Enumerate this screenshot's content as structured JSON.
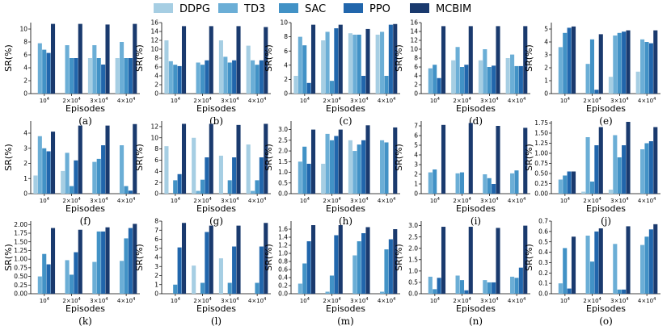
{
  "legend": [
    {
      "name": "DDPG",
      "color": "#a6cee3"
    },
    {
      "name": "TD3",
      "color": "#6baed6"
    },
    {
      "name": "SAC",
      "color": "#4292c6"
    },
    {
      "name": "PPO",
      "color": "#2166ac"
    },
    {
      "name": "MCBIM",
      "color": "#1a3a6e"
    }
  ],
  "chart_data": [
    {
      "label": "(a)",
      "type": "bar",
      "xlabel": "Episodes",
      "ylabel": "SR(%)",
      "ylim": [
        0,
        11
      ],
      "yticks": [
        0,
        2,
        4,
        6,
        8,
        10
      ],
      "categories": [
        "10^4",
        "2×10^4",
        "3×10^4",
        "4×10^4"
      ],
      "series": [
        {
          "name": "DDPG",
          "values": [
            0,
            0,
            5.5,
            5.5
          ]
        },
        {
          "name": "TD3",
          "values": [
            7.8,
            7.5,
            7.5,
            8
          ]
        },
        {
          "name": "SAC",
          "values": [
            6.8,
            5.5,
            5.5,
            5.5
          ]
        },
        {
          "name": "PPO",
          "values": [
            6.3,
            5.5,
            4.5,
            5.5
          ]
        },
        {
          "name": "MCBIM",
          "values": [
            10.8,
            10.8,
            10.7,
            10.8
          ]
        }
      ]
    },
    {
      "label": "(b)",
      "type": "bar",
      "xlabel": "Episodes",
      "ylabel": "SR(%)",
      "ylim": [
        0,
        16
      ],
      "yticks": [
        0,
        2,
        4,
        6,
        8,
        10,
        12,
        14,
        16
      ],
      "categories": [
        "10^4",
        "2×10^4",
        "3×10^4",
        "4×10^4"
      ],
      "series": [
        {
          "name": "DDPG",
          "values": [
            12,
            0,
            12,
            10.8
          ]
        },
        {
          "name": "TD3",
          "values": [
            7.3,
            7,
            8.3,
            7.5
          ]
        },
        {
          "name": "SAC",
          "values": [
            6.5,
            6.5,
            7,
            6.5
          ]
        },
        {
          "name": "PPO",
          "values": [
            6.2,
            7.5,
            7.5,
            7.5
          ]
        },
        {
          "name": "MCBIM",
          "values": [
            15.2,
            15.2,
            15.2,
            15
          ]
        }
      ]
    },
    {
      "label": "(c)",
      "type": "bar",
      "xlabel": "Episodes",
      "ylabel": "SR(%)",
      "ylim": [
        0,
        10
      ],
      "yticks": [
        0,
        2,
        4,
        6,
        8,
        10
      ],
      "categories": [
        "10^4",
        "2×10^4",
        "3×10^4",
        "4×10^4"
      ],
      "series": [
        {
          "name": "DDPG",
          "values": [
            2.5,
            7.5,
            8.5,
            8.3
          ]
        },
        {
          "name": "TD3",
          "values": [
            8,
            8.7,
            8.3,
            8.7
          ]
        },
        {
          "name": "SAC",
          "values": [
            6.8,
            1.8,
            8.3,
            2.5
          ]
        },
        {
          "name": "PPO",
          "values": [
            1.5,
            9.2,
            2.5,
            9.7
          ]
        },
        {
          "name": "MCBIM",
          "values": [
            9.7,
            9.7,
            9.1,
            9.8
          ]
        }
      ]
    },
    {
      "label": "(d)",
      "type": "bar",
      "xlabel": "Episodes",
      "ylabel": "SR(%)",
      "ylim": [
        0,
        16
      ],
      "yticks": [
        0,
        2,
        4,
        6,
        8,
        10,
        12,
        14,
        16
      ],
      "categories": [
        "10^4",
        "2×10^4",
        "3×10^4",
        "4×10^4"
      ],
      "series": [
        {
          "name": "DDPG",
          "values": [
            0,
            7.5,
            7.5,
            8
          ]
        },
        {
          "name": "TD3",
          "values": [
            5.7,
            10.5,
            10,
            8.8
          ]
        },
        {
          "name": "SAC",
          "values": [
            6.5,
            6,
            6,
            6.2
          ]
        },
        {
          "name": "PPO",
          "values": [
            3.5,
            6.5,
            6.3,
            6.2
          ]
        },
        {
          "name": "MCBIM",
          "values": [
            15.2,
            15.2,
            15.2,
            15.2
          ]
        }
      ]
    },
    {
      "label": "(e)",
      "type": "bar",
      "xlabel": "Episodes",
      "ylabel": "SR(%)",
      "ylim": [
        0,
        5.5
      ],
      "yticks": [
        0,
        1,
        2,
        3,
        4,
        5
      ],
      "categories": [
        "10^4",
        "2×10^4",
        "3×10^4",
        "4×10^4"
      ],
      "series": [
        {
          "name": "DDPG",
          "values": [
            0,
            0,
            1.3,
            1.7
          ]
        },
        {
          "name": "TD3",
          "values": [
            3.6,
            2.3,
            4.5,
            4.2
          ]
        },
        {
          "name": "SAC",
          "values": [
            4.7,
            4.2,
            4.7,
            4
          ]
        },
        {
          "name": "PPO",
          "values": [
            5.1,
            0.3,
            4.8,
            3.9
          ]
        },
        {
          "name": "MCBIM",
          "values": [
            5.2,
            4.6,
            4.9,
            4.9
          ]
        }
      ]
    },
    {
      "label": "(f)",
      "type": "bar",
      "xlabel": "Episodes",
      "ylabel": "SR(%)",
      "ylim": [
        0,
        4.8
      ],
      "yticks": [
        0,
        1,
        2,
        3,
        4
      ],
      "categories": [
        "10^4",
        "2×10^4",
        "3×10^4",
        "4×10^4"
      ],
      "series": [
        {
          "name": "DDPG",
          "values": [
            1.2,
            1.5,
            0,
            0
          ]
        },
        {
          "name": "TD3",
          "values": [
            3.8,
            2.7,
            2.1,
            3.2
          ]
        },
        {
          "name": "SAC",
          "values": [
            3,
            0.5,
            2.3,
            0.5
          ]
        },
        {
          "name": "PPO",
          "values": [
            2.8,
            2.2,
            3.2,
            0.2
          ]
        },
        {
          "name": "MCBIM",
          "values": [
            4.1,
            4.5,
            4.5,
            4.6
          ]
        }
      ]
    },
    {
      "label": "(g)",
      "type": "bar",
      "xlabel": "Episodes",
      "ylabel": "SR(%)",
      "ylim": [
        0,
        13
      ],
      "yticks": [
        0,
        2,
        4,
        6,
        8,
        10,
        12
      ],
      "categories": [
        "10^4",
        "2×10^4",
        "3×10^4",
        "4×10^4"
      ],
      "series": [
        {
          "name": "DDPG",
          "values": [
            8.5,
            10,
            6.8,
            8.8
          ]
        },
        {
          "name": "TD3",
          "values": [
            0,
            0.5,
            0,
            0.5
          ]
        },
        {
          "name": "SAC",
          "values": [
            2.4,
            2.5,
            2.4,
            2.4
          ]
        },
        {
          "name": "PPO",
          "values": [
            3.5,
            6.5,
            6.5,
            6.5
          ]
        },
        {
          "name": "MCBIM",
          "values": [
            12.5,
            12.5,
            12.3,
            12.5
          ]
        }
      ]
    },
    {
      "label": "(h)",
      "type": "bar",
      "xlabel": "Episodes",
      "ylabel": "SR(%)",
      "ylim": [
        0,
        3.4
      ],
      "yticks": [
        0,
        0.5,
        1,
        1.5,
        2,
        2.5,
        3
      ],
      "categories": [
        "10^4",
        "2×10^4",
        "3×10^4",
        "4×10^4"
      ],
      "series": [
        {
          "name": "DDPG",
          "values": [
            0,
            1.4,
            2.5,
            0
          ]
        },
        {
          "name": "TD3",
          "values": [
            1.5,
            2.8,
            2,
            2.5
          ]
        },
        {
          "name": "SAC",
          "values": [
            2.2,
            2.5,
            2.3,
            2.4
          ]
        },
        {
          "name": "PPO",
          "values": [
            1.4,
            2.7,
            2.5,
            0
          ]
        },
        {
          "name": "MCBIM",
          "values": [
            3,
            3,
            3.2,
            3.1
          ]
        }
      ]
    },
    {
      "label": "(i)",
      "type": "bar",
      "xlabel": "Episodes",
      "ylabel": "SR(%)",
      "ylim": [
        0,
        7.5
      ],
      "yticks": [
        0,
        1,
        2,
        3,
        4,
        5,
        6,
        7
      ],
      "categories": [
        "10^4",
        "2×10^4",
        "3×10^4",
        "4×10^4"
      ],
      "series": [
        {
          "name": "DDPG",
          "values": [
            0,
            0,
            0,
            0
          ]
        },
        {
          "name": "TD3",
          "values": [
            2.2,
            2.1,
            2,
            2.1
          ]
        },
        {
          "name": "SAC",
          "values": [
            2.5,
            2.2,
            1.6,
            2.4
          ]
        },
        {
          "name": "PPO",
          "values": [
            0,
            0,
            1,
            0
          ]
        },
        {
          "name": "MCBIM",
          "values": [
            7.1,
            7.3,
            7,
            6.8
          ]
        }
      ]
    },
    {
      "label": "(j)",
      "type": "bar",
      "xlabel": "Episodes",
      "ylabel": "SR(%)",
      "ylim": [
        0,
        1.8
      ],
      "yticks": [
        0,
        0.25,
        0.5,
        0.75,
        1,
        1.25,
        1.5,
        1.75
      ],
      "categories": [
        "10^4",
        "2×10^4",
        "3×10^4",
        "4×10^4"
      ],
      "series": [
        {
          "name": "DDPG",
          "values": [
            0,
            0.05,
            0.1,
            0
          ]
        },
        {
          "name": "TD3",
          "values": [
            0.35,
            1.4,
            1.45,
            1.1
          ]
        },
        {
          "name": "SAC",
          "values": [
            0.45,
            0.3,
            0.9,
            1.25
          ]
        },
        {
          "name": "PPO",
          "values": [
            0.55,
            1.2,
            1.2,
            1.3
          ]
        },
        {
          "name": "MCBIM",
          "values": [
            0.55,
            1.65,
            1.78,
            1.65
          ]
        }
      ]
    },
    {
      "label": "(k)",
      "type": "bar",
      "xlabel": "Episodes",
      "ylabel": "SR(%)",
      "ylim": [
        0,
        2.1
      ],
      "yticks": [
        0,
        0.25,
        0.5,
        0.75,
        1,
        1.25,
        1.5,
        1.75,
        2
      ],
      "categories": [
        "10^4",
        "2×10^4",
        "3×10^4",
        "4×10^4"
      ],
      "series": [
        {
          "name": "DDPG",
          "values": [
            0,
            0,
            0,
            0
          ]
        },
        {
          "name": "TD3",
          "values": [
            0.5,
            0.97,
            0.92,
            0.95
          ]
        },
        {
          "name": "SAC",
          "values": [
            1.15,
            0.55,
            1.8,
            1.6
          ]
        },
        {
          "name": "PPO",
          "values": [
            0.85,
            1.2,
            1.8,
            1.9
          ]
        },
        {
          "name": "MCBIM",
          "values": [
            1.9,
            1.85,
            1.92,
            2.02
          ]
        }
      ]
    },
    {
      "label": "(l)",
      "type": "bar",
      "xlabel": "Episodes",
      "ylabel": "SR(%)",
      "ylim": [
        0,
        8
      ],
      "yticks": [
        0,
        1,
        2,
        3,
        4,
        5,
        6,
        7,
        8
      ],
      "categories": [
        "10^4",
        "2×10^4",
        "3×10^4",
        "4×10^4"
      ],
      "series": [
        {
          "name": "DDPG",
          "values": [
            0,
            3.1,
            3.9,
            0
          ]
        },
        {
          "name": "TD3",
          "values": [
            0,
            0,
            0,
            0
          ]
        },
        {
          "name": "SAC",
          "values": [
            1,
            1.2,
            1.2,
            1.2
          ]
        },
        {
          "name": "PPO",
          "values": [
            5.1,
            6.8,
            5.2,
            5.2
          ]
        },
        {
          "name": "MCBIM",
          "values": [
            7.8,
            7.5,
            7.5,
            7.8
          ]
        }
      ]
    },
    {
      "label": "(m)",
      "type": "bar",
      "xlabel": "Episodes",
      "ylabel": "SR(%)",
      "ylim": [
        0,
        1.8
      ],
      "yticks": [
        0,
        0.2,
        0.4,
        0.6,
        0.8,
        1,
        1.2,
        1.4,
        1.6
      ],
      "categories": [
        "10^4",
        "2×10^4",
        "3×10^4",
        "4×10^4"
      ],
      "series": [
        {
          "name": "DDPG",
          "values": [
            0,
            0,
            0,
            0
          ]
        },
        {
          "name": "TD3",
          "values": [
            0.25,
            0.05,
            0.95,
            0.05
          ]
        },
        {
          "name": "SAC",
          "values": [
            0.75,
            0.45,
            1.3,
            1.1
          ]
        },
        {
          "name": "PPO",
          "values": [
            1.3,
            1.45,
            1.5,
            1.35
          ]
        },
        {
          "name": "MCBIM",
          "values": [
            1.7,
            1.7,
            1.65,
            1.6
          ]
        }
      ]
    },
    {
      "label": "(n)",
      "type": "bar",
      "xlabel": "Episodes",
      "ylabel": "SR(%)",
      "ylim": [
        0,
        3.2
      ],
      "yticks": [
        0,
        0.5,
        1,
        1.5,
        2,
        2.5,
        3
      ],
      "categories": [
        "10^4",
        "2×10^4",
        "3×10^4",
        "4×10^4"
      ],
      "series": [
        {
          "name": "DDPG",
          "values": [
            0,
            0,
            0,
            0
          ]
        },
        {
          "name": "TD3",
          "values": [
            0.75,
            0.8,
            0.6,
            0.75
          ]
        },
        {
          "name": "SAC",
          "values": [
            0.2,
            0.6,
            0.5,
            0.7
          ]
        },
        {
          "name": "PPO",
          "values": [
            0.7,
            0.15,
            0.5,
            1.15
          ]
        },
        {
          "name": "MCBIM",
          "values": [
            2.95,
            2.95,
            2.9,
            3
          ]
        }
      ]
    },
    {
      "label": "(o)",
      "type": "bar",
      "xlabel": "Episodes",
      "ylabel": "SR(%)",
      "ylim": [
        0,
        0.7
      ],
      "yticks": [
        0,
        0.1,
        0.2,
        0.3,
        0.4,
        0.5,
        0.6,
        0.7
      ],
      "categories": [
        "10^4",
        "2×10^4",
        "3×10^4",
        "4×10^4"
      ],
      "series": [
        {
          "name": "DDPG",
          "values": [
            0,
            0,
            0,
            0
          ]
        },
        {
          "name": "TD3",
          "values": [
            0.1,
            0.56,
            0.48,
            0.47
          ]
        },
        {
          "name": "SAC",
          "values": [
            0.44,
            0.31,
            0.04,
            0.55
          ]
        },
        {
          "name": "PPO",
          "values": [
            0.05,
            0.6,
            0.04,
            0.62
          ]
        },
        {
          "name": "MCBIM",
          "values": [
            0.55,
            0.63,
            0.65,
            0.67
          ]
        }
      ]
    }
  ]
}
